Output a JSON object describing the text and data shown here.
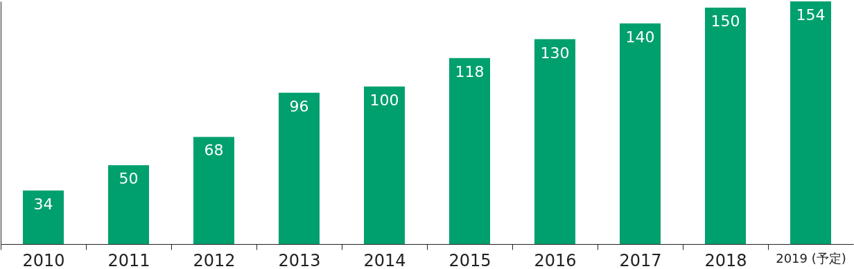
{
  "chart_data": {
    "type": "bar",
    "categories": [
      "2010",
      "2011",
      "2012",
      "2013",
      "2014",
      "2015",
      "2016",
      "2017",
      "2018",
      "2019 (予定)"
    ],
    "values": [
      34,
      50,
      68,
      96,
      100,
      118,
      130,
      140,
      150,
      154
    ],
    "color": "#00a06e",
    "data_labels": true
  }
}
